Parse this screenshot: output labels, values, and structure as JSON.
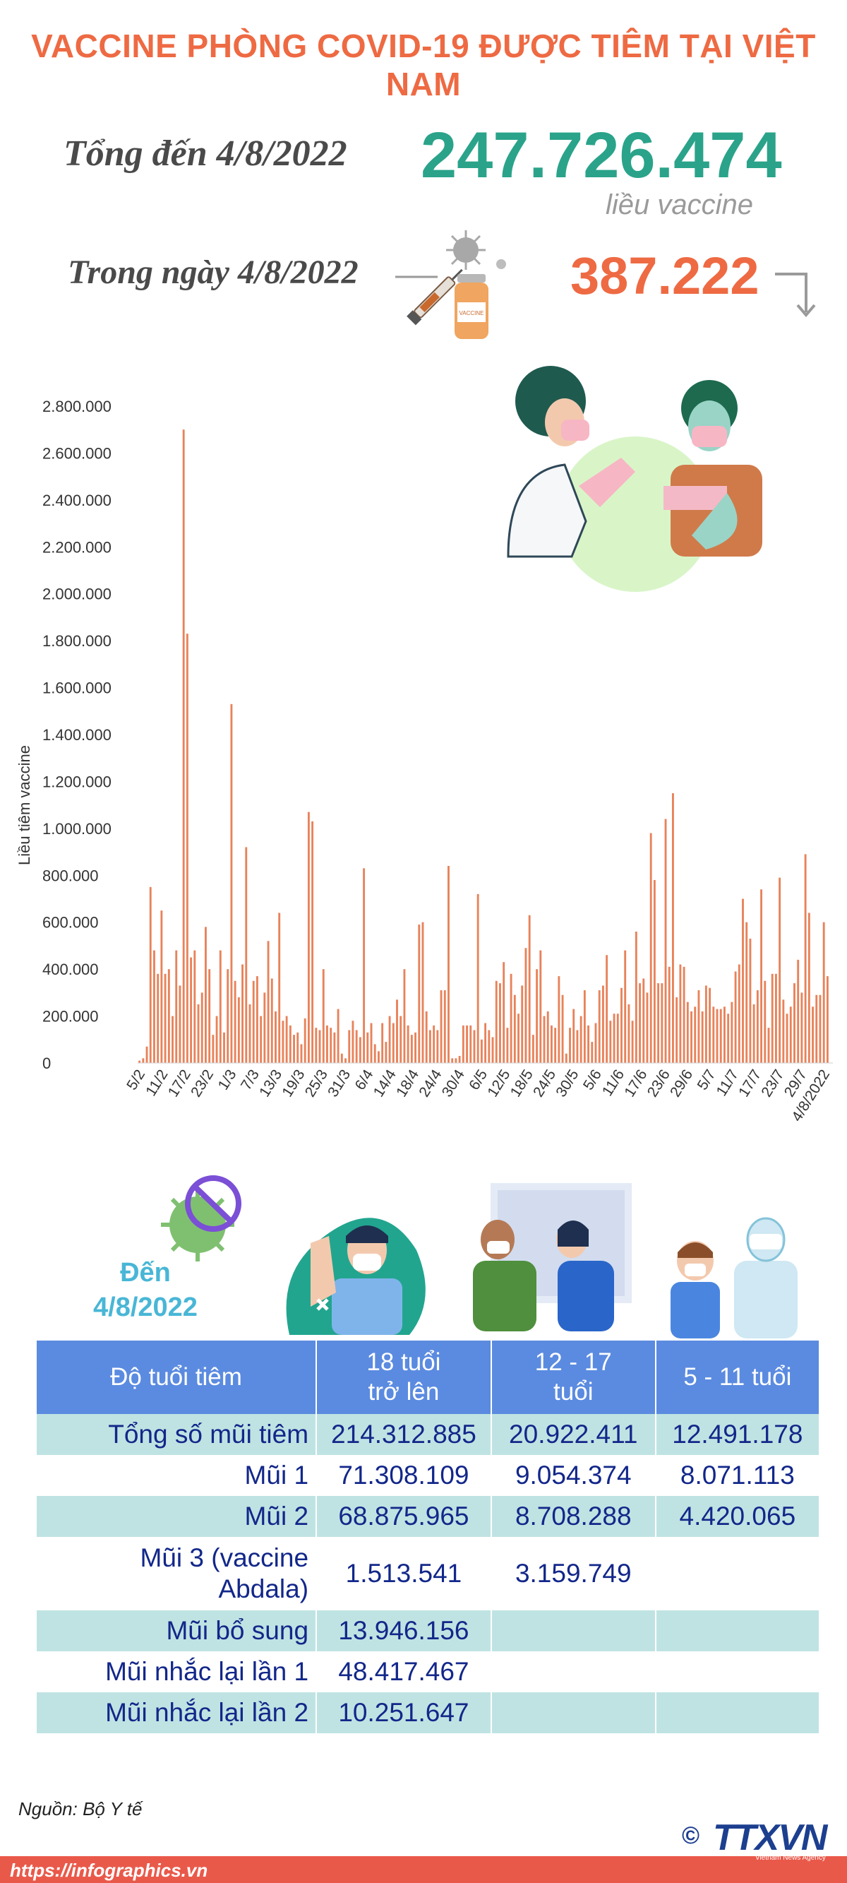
{
  "title": "VACCINE PHÒNG COVID-19 ĐƯỢC TIÊM TẠI VIỆT NAM",
  "summary": {
    "total_label": "Tổng đến 4/8/2022",
    "total_value": "247.726.474",
    "total_unit": "liều vaccine",
    "day_label": "Trong ngày 4/8/2022",
    "day_value": "387.222"
  },
  "colors": {
    "title": "#ee6a43",
    "teal": "#2aa38a",
    "bar": "#e8825a",
    "table_header": "#5b8be0",
    "table_teal": "#bfe3e2",
    "table_text": "#12278a"
  },
  "chart_data": {
    "type": "bar",
    "ylabel": "Liều tiêm vaccine",
    "ylim": [
      0,
      2800000
    ],
    "y_ticks": [
      "2.800.000",
      "2.600.000",
      "2.400.000",
      "2.200.000",
      "2.000.000",
      "1.800.000",
      "1.600.000",
      "1.400.000",
      "1.200.000",
      "1.000.000",
      "800.000",
      "600.000",
      "400.000",
      "200.000",
      "0"
    ],
    "x_tick_labels": [
      "5/2",
      "11/2",
      "17/2",
      "23/2",
      "1/3",
      "7/3",
      "13/3",
      "19/3",
      "25/3",
      "31/3",
      "6/4",
      "14/4",
      "18/4",
      "24/4",
      "30/4",
      "6/5",
      "12/5",
      "18/5",
      "24/5",
      "30/5",
      "5/6",
      "11/6",
      "17/6",
      "23/6",
      "29/6",
      "5/7",
      "11/7",
      "17/7",
      "23/7",
      "29/7",
      "4/8/2022"
    ],
    "values": [
      10000,
      20000,
      70000,
      750000,
      480000,
      380000,
      650000,
      380000,
      400000,
      200000,
      480000,
      330000,
      2700000,
      1830000,
      450000,
      480000,
      250000,
      300000,
      580000,
      400000,
      120000,
      200000,
      480000,
      130000,
      400000,
      1530000,
      350000,
      280000,
      420000,
      920000,
      250000,
      350000,
      370000,
      200000,
      300000,
      520000,
      360000,
      220000,
      640000,
      180000,
      200000,
      160000,
      120000,
      130000,
      80000,
      190000,
      1070000,
      1030000,
      150000,
      140000,
      400000,
      160000,
      150000,
      130000,
      230000,
      40000,
      20000,
      140000,
      180000,
      140000,
      110000,
      830000,
      130000,
      170000,
      80000,
      50000,
      170000,
      90000,
      200000,
      170000,
      270000,
      200000,
      400000,
      160000,
      120000,
      130000,
      590000,
      600000,
      220000,
      140000,
      160000,
      140000,
      310000,
      310000,
      840000,
      20000,
      20000,
      30000,
      160000,
      160000,
      160000,
      140000,
      720000,
      100000,
      170000,
      140000,
      110000,
      350000,
      340000,
      430000,
      150000,
      380000,
      290000,
      210000,
      330000,
      490000,
      630000,
      120000,
      400000,
      480000,
      200000,
      220000,
      160000,
      150000,
      370000,
      290000,
      40000,
      150000,
      230000,
      140000,
      200000,
      310000,
      160000,
      90000,
      170000,
      310000,
      330000,
      460000,
      180000,
      210000,
      210000,
      320000,
      480000,
      250000,
      180000,
      560000,
      340000,
      360000,
      300000,
      980000,
      780000,
      340000,
      340000,
      1040000,
      410000,
      1150000,
      280000,
      420000,
      410000,
      260000,
      220000,
      240000,
      310000,
      220000,
      330000,
      320000,
      240000,
      230000,
      230000,
      240000,
      210000,
      260000,
      390000,
      420000,
      700000,
      600000,
      530000,
      250000,
      310000,
      740000,
      350000,
      150000,
      380000,
      380000,
      790000,
      270000,
      210000,
      240000,
      340000,
      440000,
      300000,
      890000,
      640000,
      240000,
      290000,
      290000,
      600000,
      370000
    ]
  },
  "date_label": "Đến\n4/8/2022",
  "table": {
    "headers": [
      "Độ tuổi tiêm",
      "18 tuổi\ntrở lên",
      "12 - 17\ntuổi",
      "5 - 11 tuổi"
    ],
    "rows": [
      [
        "Tổng số mũi tiêm",
        "214.312.885",
        "20.922.411",
        "12.491.178"
      ],
      [
        "Mũi 1",
        "71.308.109",
        "9.054.374",
        "8.071.113"
      ],
      [
        "Mũi 2",
        "68.875.965",
        "8.708.288",
        "4.420.065"
      ],
      [
        "Mũi 3 (vaccine\nAbdala)",
        "1.513.541",
        "3.159.749",
        ""
      ],
      [
        "Mũi bổ sung",
        "13.946.156",
        "",
        ""
      ],
      [
        "Mũi nhắc lại lần 1",
        "48.417.467",
        "",
        ""
      ],
      [
        "Mũi nhắc lại lần 2",
        "10.251.647",
        "",
        ""
      ]
    ]
  },
  "source": "Nguồn: Bộ Y tế",
  "footer_url": "https://infographics.vn",
  "logo": {
    "copyright": "©",
    "text": "TTXVN",
    "sub": "Vietnam News Agency"
  }
}
